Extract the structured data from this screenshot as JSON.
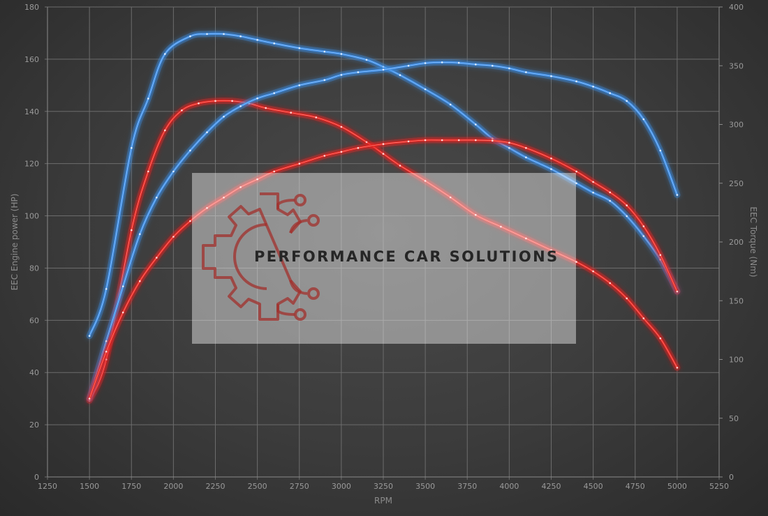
{
  "chart_data": {
    "type": "line",
    "xlabel": "RPM",
    "ylabel_left": "EEC Engine power (HP)",
    "ylabel_right": "EEC Torque (Nm)",
    "xlim": [
      1250,
      5250
    ],
    "x_ticks": [
      1250,
      1500,
      1750,
      2000,
      2250,
      2500,
      2750,
      3000,
      3250,
      3500,
      3750,
      4000,
      4250,
      4500,
      4750,
      5000,
      5250
    ],
    "ylim_left": [
      0,
      180
    ],
    "y_left_ticks": [
      0,
      20,
      40,
      60,
      80,
      100,
      120,
      140,
      160,
      180
    ],
    "ylim_right": [
      0,
      400
    ],
    "y_right_ticks": [
      0,
      50,
      100,
      150,
      200,
      250,
      300,
      350,
      400
    ],
    "grid": true,
    "legend": "none",
    "watermark": {
      "text": "PERFORMANCE CAR SOLUTIONS",
      "logo": "gear-circuit-logo"
    },
    "series": [
      {
        "axis": "right",
        "color": "#3d8ee8",
        "x": [
          1500,
          1600,
          1750,
          1850,
          1950,
          2100,
          2200,
          2300,
          2400,
          2500,
          2600,
          2750,
          2900,
          3000,
          3150,
          3250,
          3350,
          3500,
          3650,
          3800,
          3900,
          4000,
          4100,
          4250,
          4400,
          4500,
          4600,
          4700,
          4800,
          4900,
          5000
        ],
        "y": [
          120,
          160,
          280,
          322,
          360,
          375,
          377,
          377,
          375,
          372,
          369,
          365,
          362,
          360,
          355,
          349,
          342,
          330,
          317,
          300,
          288,
          280,
          272,
          262,
          250,
          242,
          235,
          222,
          205,
          185,
          158
        ]
      },
      {
        "axis": "right",
        "color": "#e8231d",
        "x": [
          1500,
          1600,
          1750,
          1850,
          1950,
          2050,
          2150,
          2250,
          2350,
          2450,
          2550,
          2700,
          2850,
          3000,
          3150,
          3250,
          3350,
          3500,
          3650,
          3800,
          3950,
          4100,
          4250,
          4400,
          4500,
          4600,
          4700,
          4800,
          4900,
          5000
        ],
        "y": [
          65,
          100,
          210,
          260,
          295,
          312,
          318,
          320,
          320,
          318,
          314,
          310,
          306,
          298,
          285,
          275,
          265,
          252,
          238,
          223,
          213,
          203,
          193,
          183,
          175,
          165,
          152,
          135,
          118,
          93
        ]
      },
      {
        "axis": "left",
        "color": "#3d8ee8",
        "x": [
          1500,
          1600,
          1700,
          1800,
          1900,
          2000,
          2100,
          2200,
          2300,
          2400,
          2500,
          2600,
          2750,
          2900,
          3000,
          3100,
          3250,
          3400,
          3500,
          3600,
          3700,
          3800,
          3900,
          4000,
          4100,
          4250,
          4400,
          4500,
          4600,
          4700,
          4800,
          4900,
          5000
        ],
        "y": [
          30,
          52,
          73,
          93,
          107,
          117,
          125,
          132,
          138,
          142,
          145,
          147,
          150,
          152,
          154,
          155,
          156,
          157.5,
          158.5,
          158.8,
          158.6,
          158,
          157.5,
          156.5,
          155,
          153.5,
          151.5,
          149.5,
          147,
          144,
          137,
          125,
          108
        ]
      },
      {
        "axis": "left",
        "color": "#e8231d",
        "x": [
          1500,
          1600,
          1700,
          1800,
          1900,
          2000,
          2100,
          2200,
          2300,
          2400,
          2500,
          2600,
          2750,
          2900,
          3000,
          3100,
          3250,
          3400,
          3500,
          3600,
          3700,
          3800,
          3900,
          4000,
          4100,
          4250,
          4400,
          4500,
          4600,
          4700,
          4800,
          4900,
          5000
        ],
        "y": [
          30,
          48,
          63,
          75,
          84,
          92,
          98,
          103,
          107,
          111,
          114,
          117,
          120,
          123,
          124.5,
          126,
          127.5,
          128.5,
          129,
          129,
          129,
          129,
          128.8,
          128,
          126,
          122,
          117,
          113,
          109,
          104,
          96,
          85,
          71
        ]
      }
    ]
  }
}
